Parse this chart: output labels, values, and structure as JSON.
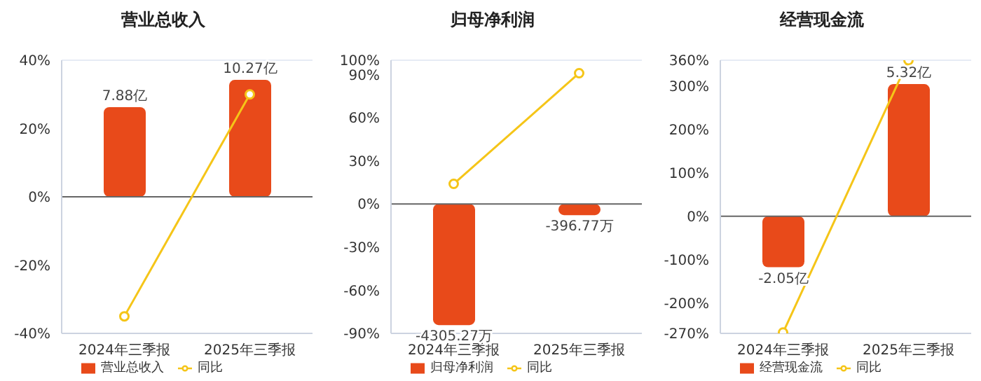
{
  "chart_data": [
    {
      "type": "bar",
      "title": "营业总收入",
      "categories": [
        "2024年三季报",
        "2025年三季报"
      ],
      "ylim": [
        -40,
        40
      ],
      "yticks": [
        {
          "value": -40,
          "label": "-40%"
        },
        {
          "value": -20,
          "label": "-20%"
        },
        {
          "value": 0,
          "label": "0%"
        },
        {
          "value": 20,
          "label": "20%"
        },
        {
          "value": 40,
          "label": "40%"
        }
      ],
      "y2lim": [
        -12,
        12
      ],
      "tick_labels": [
        "x",
        "y"
      ],
      "grid": "y",
      "legend": "bottom",
      "series": [
        {
          "name": "营业总收入",
          "axis": "y2",
          "color": "#e84a1a",
          "values": [
            7.88,
            10.27
          ],
          "value_labels": [
            "7.88亿",
            "10.27亿"
          ]
        },
        {
          "name": "同比",
          "type": "line",
          "color": "#f5c518",
          "marker": "circle",
          "values": [
            -35,
            30
          ]
        }
      ]
    },
    {
      "type": "bar",
      "title": "归母净利润",
      "categories": [
        "2024年三季报",
        "2025年三季报"
      ],
      "ylim": [
        -90,
        100
      ],
      "yticks": [
        {
          "value": -90,
          "label": "-90%"
        },
        {
          "value": -60,
          "label": "-60%"
        },
        {
          "value": -30,
          "label": "-30%"
        },
        {
          "value": 0,
          "label": "0%"
        },
        {
          "value": 30,
          "label": "30%"
        },
        {
          "value": 60,
          "label": "60%"
        },
        {
          "value": 90,
          "label": "90%"
        },
        {
          "value": 100,
          "label": "100%"
        }
      ],
      "y2lim": [
        -4600,
        5111
      ],
      "tick_labels": [
        "x",
        "y"
      ],
      "grid": "y",
      "legend": "bottom",
      "series": [
        {
          "name": "归母净利润",
          "axis": "y2",
          "color": "#e84a1a",
          "values": [
            -4305.27,
            -396.77
          ],
          "value_labels": [
            "-4305.27万",
            "-396.77万"
          ]
        },
        {
          "name": "同比",
          "type": "line",
          "color": "#f5c518",
          "marker": "circle",
          "values": [
            14,
            91
          ]
        }
      ]
    },
    {
      "type": "bar",
      "title": "经营现金流",
      "categories": [
        "2024年三季报",
        "2025年三季报"
      ],
      "ylim": [
        -270,
        360
      ],
      "yticks": [
        {
          "value": -270,
          "label": "-270%"
        },
        {
          "value": -200,
          "label": "-200%"
        },
        {
          "value": -100,
          "label": "-100%"
        },
        {
          "value": 0,
          "label": "0%"
        },
        {
          "value": 100,
          "label": "100%"
        },
        {
          "value": 200,
          "label": "200%"
        },
        {
          "value": 300,
          "label": "300%"
        },
        {
          "value": 360,
          "label": "360%"
        }
      ],
      "y2lim": [
        -4.71,
        6.28
      ],
      "tick_labels": [
        "x",
        "y"
      ],
      "grid": "y",
      "legend": "bottom",
      "series": [
        {
          "name": "经营现金流",
          "axis": "y2",
          "color": "#e84a1a",
          "values": [
            -2.05,
            5.32
          ],
          "value_labels": [
            "-2.05亿",
            "5.32亿"
          ]
        },
        {
          "name": "同比",
          "type": "line",
          "color": "#f5c518",
          "marker": "circle",
          "values": [
            -268,
            360
          ]
        }
      ]
    }
  ]
}
